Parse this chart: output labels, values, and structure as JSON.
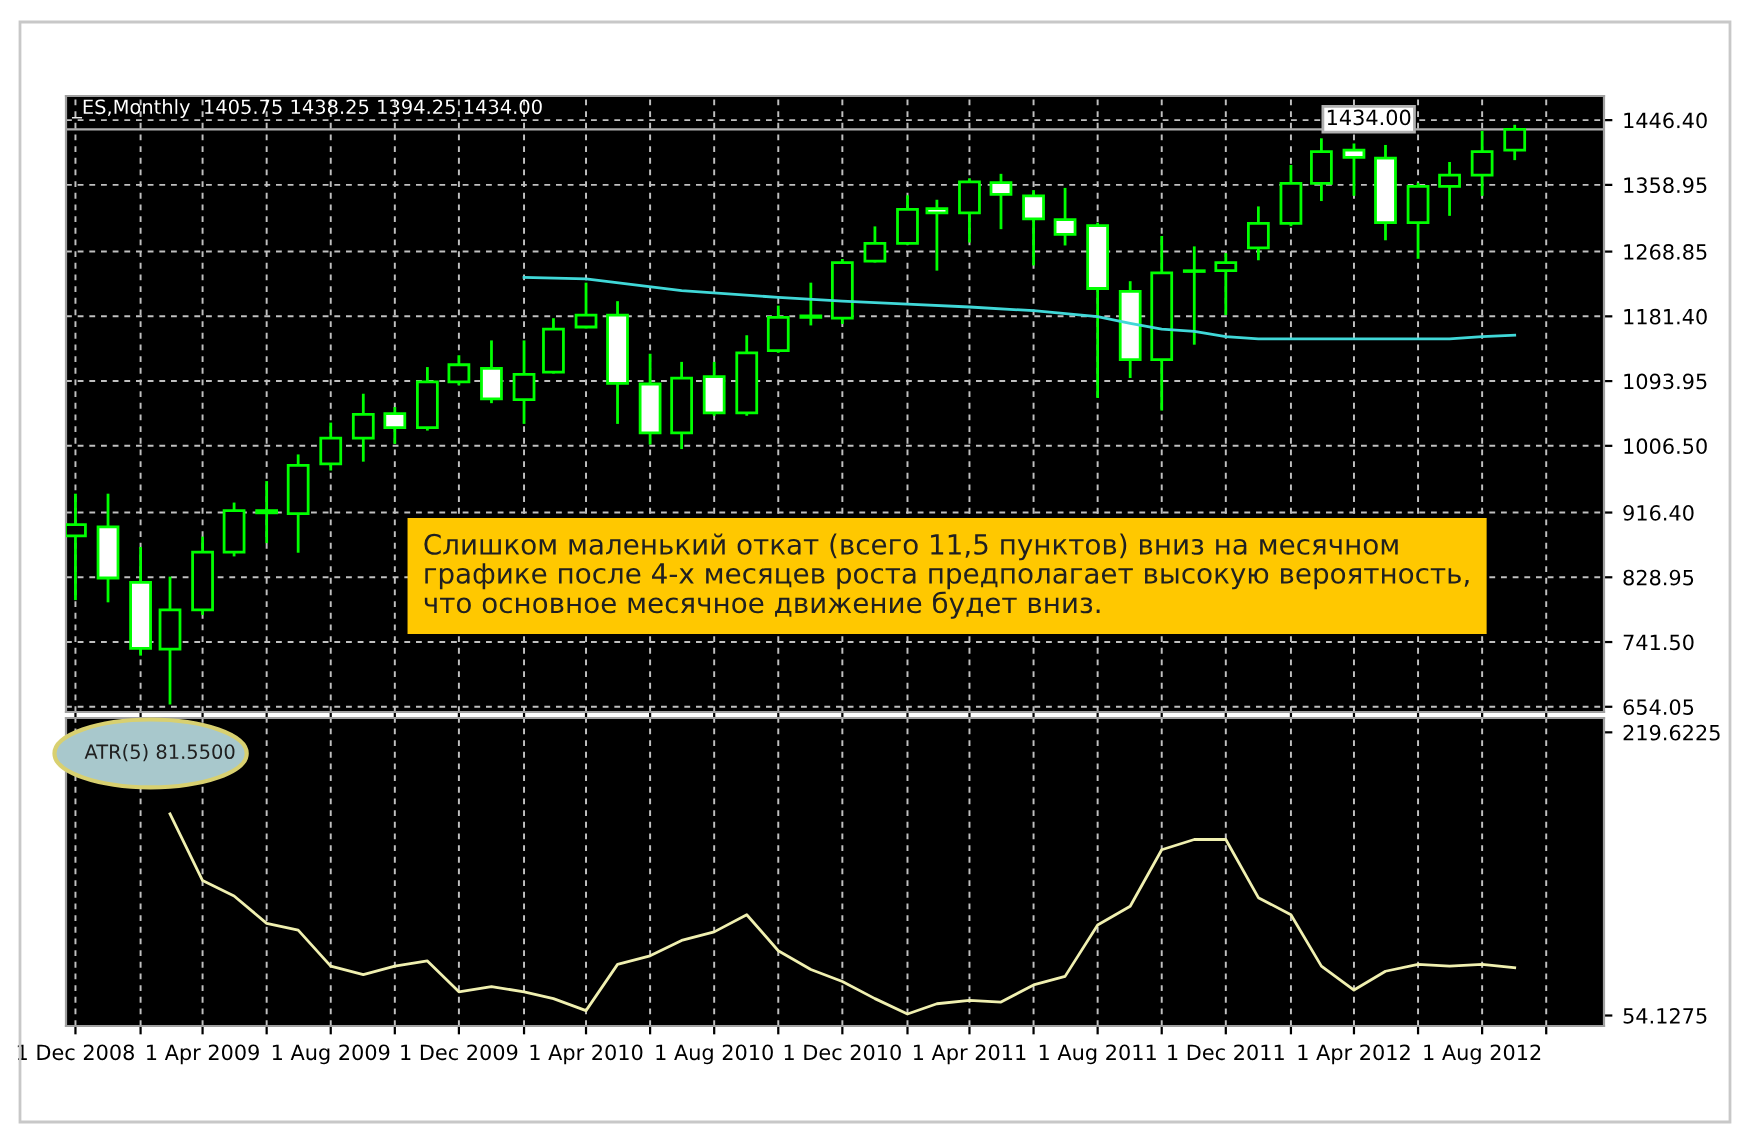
{
  "chart_data": [
    {
      "type": "candlestick",
      "title": "_ES,Monthly  1405.75 1438.25 1394.25 1434.00",
      "x": [
        "2008-12",
        "2009-01",
        "2009-02",
        "2009-03",
        "2009-04",
        "2009-05",
        "2009-06",
        "2009-07",
        "2009-08",
        "2009-09",
        "2009-10",
        "2009-11",
        "2009-12",
        "2010-01",
        "2010-02",
        "2010-03",
        "2010-04",
        "2010-05",
        "2010-06",
        "2010-07",
        "2010-08",
        "2010-09",
        "2010-10",
        "2010-11",
        "2010-12",
        "2011-01",
        "2011-02",
        "2011-03",
        "2011-04",
        "2011-05",
        "2011-06",
        "2011-07",
        "2011-08",
        "2011-09",
        "2011-10",
        "2011-11",
        "2011-12",
        "2012-01",
        "2012-02",
        "2012-03",
        "2012-04",
        "2012-05",
        "2012-06",
        "2012-07",
        "2012-08",
        "2012-09"
      ],
      "ohlc": [
        [
          885,
          940,
          800,
          900
        ],
        [
          897,
          940,
          797,
          828
        ],
        [
          822,
          868,
          725,
          733
        ],
        [
          732,
          828,
          659,
          785
        ],
        [
          785,
          882,
          780,
          863
        ],
        [
          863,
          928,
          859,
          919
        ],
        [
          919,
          957,
          877,
          916
        ],
        [
          915,
          993,
          864,
          980
        ],
        [
          982,
          1036,
          975,
          1017
        ],
        [
          1017,
          1075,
          987,
          1049
        ],
        [
          1050,
          1057,
          1011,
          1031
        ],
        [
          1031,
          1111,
          1029,
          1093
        ],
        [
          1093,
          1127,
          1090,
          1116
        ],
        [
          1111,
          1147,
          1066,
          1070
        ],
        [
          1069,
          1147,
          1038,
          1103
        ],
        [
          1106,
          1177,
          1106,
          1164
        ],
        [
          1167,
          1225,
          1167,
          1183
        ],
        [
          1183,
          1200,
          1038,
          1091
        ],
        [
          1090,
          1129,
          1010,
          1024
        ],
        [
          1024,
          1118,
          1004,
          1098
        ],
        [
          1100,
          1118,
          1049,
          1051
        ],
        [
          1051,
          1154,
          1049,
          1132
        ],
        [
          1135,
          1194,
          1134,
          1180
        ],
        [
          1180,
          1225,
          1171,
          1182
        ],
        [
          1179,
          1257,
          1173,
          1254
        ],
        [
          1256,
          1301,
          1256,
          1280
        ],
        [
          1280,
          1343,
          1280,
          1326
        ],
        [
          1327,
          1337,
          1245,
          1321
        ],
        [
          1321,
          1366,
          1283,
          1363
        ],
        [
          1362,
          1372,
          1301,
          1346
        ],
        [
          1344,
          1350,
          1252,
          1313
        ],
        [
          1312,
          1353,
          1279,
          1292
        ],
        [
          1304,
          1306,
          1073,
          1219
        ],
        [
          1215,
          1227,
          1100,
          1123
        ],
        [
          1123,
          1288,
          1056,
          1240
        ],
        [
          1242,
          1274,
          1145,
          1243
        ],
        [
          1243,
          1265,
          1185,
          1254
        ],
        [
          1274,
          1328,
          1259,
          1307
        ],
        [
          1307,
          1384,
          1305,
          1361
        ],
        [
          1361,
          1420,
          1339,
          1404
        ],
        [
          1406,
          1413,
          1346,
          1396
        ],
        [
          1395,
          1411,
          1286,
          1308
        ],
        [
          1308,
          1360,
          1261,
          1357
        ],
        [
          1357,
          1388,
          1319,
          1372
        ],
        [
          1372,
          1430,
          1346,
          1404
        ],
        [
          1405.75,
          1438.25,
          1394.25,
          1434.0
        ]
      ],
      "series": [
        {
          "type": "line",
          "color": "#40d8d8",
          "x": [
            "2010-02",
            "2010-04",
            "2010-07",
            "2010-10",
            "2010-12",
            "2011-02",
            "2011-04",
            "2011-06",
            "2011-08",
            "2011-09",
            "2011-10",
            "2011-11",
            "2011-12",
            "2012-01",
            "2012-07",
            "2012-08",
            "2012-09"
          ],
          "values": [
            1234,
            1232,
            1216,
            1207,
            1202,
            1198,
            1194,
            1189,
            1181,
            1172,
            1164,
            1161,
            1154,
            1151,
            1151,
            1154,
            1156
          ]
        }
      ],
      "xlim": [
        "2008-11-22",
        "2012-11-25"
      ],
      "xticks": [
        {
          "value": "2008-12-01",
          "label": null
        },
        {
          "value": "2009-02-01",
          "label": null
        },
        {
          "value": "2009-04-01",
          "label": null
        },
        {
          "value": "2009-06-01",
          "label": null
        },
        {
          "value": "2009-08-01",
          "label": null
        },
        {
          "value": "2009-10-01",
          "label": null
        },
        {
          "value": "2009-12-01",
          "label": null
        },
        {
          "value": "2010-02-01",
          "label": null
        },
        {
          "value": "2010-04-01",
          "label": null
        },
        {
          "value": "2010-06-01",
          "label": null
        },
        {
          "value": "2010-08-01",
          "label": null
        },
        {
          "value": "2010-10-01",
          "label": null
        },
        {
          "value": "2010-12-01",
          "label": null
        },
        {
          "value": "2011-02-01",
          "label": null
        },
        {
          "value": "2011-04-01",
          "label": null
        },
        {
          "value": "2011-06-01",
          "label": null
        },
        {
          "value": "2011-08-01",
          "label": null
        },
        {
          "value": "2011-10-01",
          "label": null
        },
        {
          "value": "2011-12-01",
          "label": null
        },
        {
          "value": "2012-02-01",
          "label": null
        },
        {
          "value": "2012-04-01",
          "label": null
        },
        {
          "value": "2012-06-01",
          "label": null
        },
        {
          "value": "2012-08-01",
          "label": null
        },
        {
          "value": "2012-10-01",
          "label": null
        }
      ],
      "ylim": [
        647,
        1479
      ],
      "yticks": [
        {
          "value": 1446.4,
          "label": "1446.40"
        },
        1358.95,
        1268.85,
        {
          "value": 1181.4,
          "label": "1181.40"
        },
        1093.95,
        {
          "value": 1006.5,
          "label": "1006.50"
        },
        {
          "value": 916.4,
          "label": "916.40"
        },
        828.95,
        {
          "value": 741.5,
          "label": "741.50"
        },
        654.05
      ],
      "ref_lines": [
        {
          "axis": "y",
          "value": 1434,
          "label": "1434.00",
          "color": "#b0b0b0"
        }
      ],
      "annotations": [
        "Слишком маленький откат (всего 11,5 пунктов) вниз на месячном\nграфике после 4-х месяцев роста предполагает высокую вероятность,\nчто основное месячное движение будет вниз."
      ],
      "grid": true,
      "tick_labels": "y"
    },
    {
      "type": "line",
      "title": "ATR(5) 81.5500",
      "color": "#f0f0b0",
      "x": [
        "2009-03",
        "2009-04",
        "2009-05",
        "2009-06",
        "2009-07",
        "2009-08",
        "2009-09",
        "2009-10",
        "2009-11",
        "2009-12",
        "2010-01",
        "2010-02",
        "2010-03",
        "2010-04",
        "2010-05",
        "2010-06",
        "2010-07",
        "2010-08",
        "2010-09",
        "2010-10",
        "2010-11",
        "2010-12",
        "2011-01",
        "2011-02",
        "2011-03",
        "2011-04",
        "2011-05",
        "2011-06",
        "2011-07",
        "2011-08",
        "2011-09",
        "2011-10",
        "2011-11",
        "2011-12",
        "2012-01",
        "2012-02",
        "2012-03",
        "2012-04",
        "2012-05",
        "2012-06",
        "2012-07",
        "2012-08",
        "2012-09"
      ],
      "values": [
        172,
        133,
        124,
        108,
        104,
        83,
        78,
        83,
        86,
        68,
        71,
        68,
        64,
        57,
        84,
        89,
        98,
        103,
        113,
        92,
        81,
        74,
        64,
        55,
        61,
        63,
        62,
        72,
        77,
        107,
        118,
        151,
        157,
        157,
        123,
        113,
        83,
        69,
        80,
        84,
        83,
        84,
        82
      ],
      "xlim": [
        "2008-11-22",
        "2012-11-25"
      ],
      "xticks": [
        {
          "value": "2008-12-01",
          "label": "1 Dec 2008"
        },
        {
          "value": "2009-02-01",
          "label": null
        },
        {
          "value": "2009-04-01",
          "label": "1 Apr 2009"
        },
        {
          "value": "2009-06-01",
          "label": null
        },
        {
          "value": "2009-08-01",
          "label": "1 Aug 2009"
        },
        {
          "value": "2009-10-01",
          "label": null
        },
        {
          "value": "2009-12-01",
          "label": "1 Dec 2009"
        },
        {
          "value": "2010-02-01",
          "label": null
        },
        {
          "value": "2010-04-01",
          "label": "1 Apr 2010"
        },
        {
          "value": "2010-06-01",
          "label": null
        },
        {
          "value": "2010-08-01",
          "label": "1 Aug 2010"
        },
        {
          "value": "2010-10-01",
          "label": null
        },
        {
          "value": "2010-12-01",
          "label": "1 Dec 2010"
        },
        {
          "value": "2011-02-01",
          "label": null
        },
        {
          "value": "2011-04-01",
          "label": "1 Apr 2011"
        },
        {
          "value": "2011-06-01",
          "label": null
        },
        {
          "value": "2011-08-01",
          "label": "1 Aug 2011"
        },
        {
          "value": "2011-10-01",
          "label": null
        },
        {
          "value": "2011-12-01",
          "label": "1 Dec 2011"
        },
        {
          "value": "2012-02-01",
          "label": null
        },
        {
          "value": "2012-04-01",
          "label": "1 Apr 2012"
        },
        {
          "value": "2012-06-01",
          "label": null
        },
        {
          "value": "2012-08-01",
          "label": "1 Aug 2012"
        },
        {
          "value": "2012-10-01",
          "label": null
        }
      ],
      "ylim": [
        48,
        228
      ],
      "yticks": [
        54.1275,
        219.6225
      ],
      "grid": "x"
    }
  ]
}
